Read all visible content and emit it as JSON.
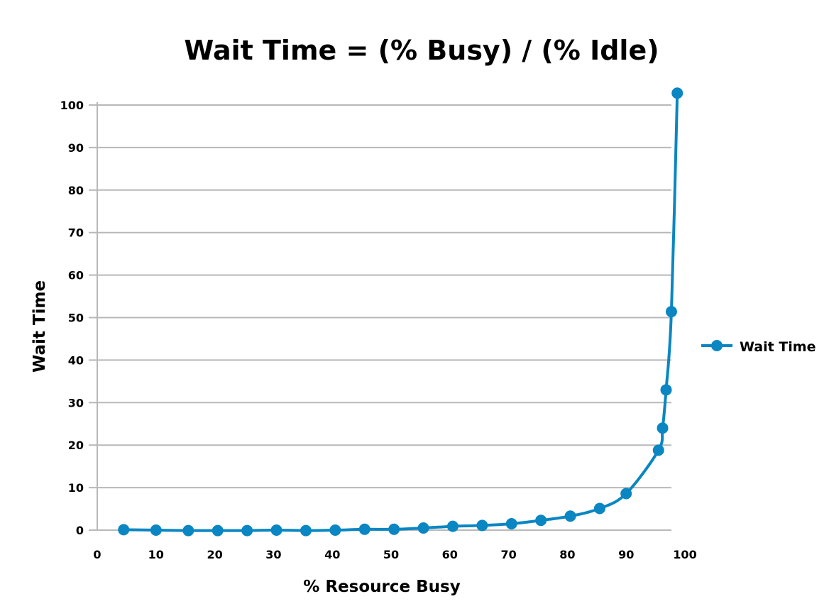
{
  "chart_data": {
    "type": "line",
    "title": "Wait Time = (% Busy) / (% Idle)",
    "xlabel": "% Resource Busy",
    "ylabel": "Wait Time",
    "xlim": [
      0,
      100
    ],
    "ylim": [
      0,
      100
    ],
    "x_ticks": [
      "0",
      "10",
      "20",
      "30",
      "40",
      "50",
      "60",
      "70",
      "80",
      "90",
      "100"
    ],
    "y_ticks": [
      "0",
      "10",
      "20",
      "30",
      "40",
      "50",
      "60",
      "70",
      "80",
      "90",
      "100"
    ],
    "grid": "horizontal",
    "legend_position": "right",
    "series": [
      {
        "name": "Wait Time",
        "color": "#0a86c2",
        "points": [
          {
            "x": 4.5,
            "y": 0.1
          },
          {
            "x": 10,
            "y": 0
          },
          {
            "x": 15.5,
            "y": -0.1
          },
          {
            "x": 20.5,
            "y": -0.1
          },
          {
            "x": 25.5,
            "y": -0.1
          },
          {
            "x": 30.5,
            "y": 0
          },
          {
            "x": 35.5,
            "y": -0.1
          },
          {
            "x": 40.5,
            "y": 0
          },
          {
            "x": 45.5,
            "y": 0.2
          },
          {
            "x": 50.5,
            "y": 0.2
          },
          {
            "x": 55.5,
            "y": 0.5
          },
          {
            "x": 60.5,
            "y": 0.9
          },
          {
            "x": 65.5,
            "y": 1.1
          },
          {
            "x": 70.5,
            "y": 1.5
          },
          {
            "x": 75.5,
            "y": 2.3
          },
          {
            "x": 80.5,
            "y": 3.3
          },
          {
            "x": 85.5,
            "y": 5.1
          },
          {
            "x": 90,
            "y": 8.6
          },
          {
            "x": 95.5,
            "y": 18.8
          },
          {
            "x": 96.2,
            "y": 24
          },
          {
            "x": 96.8,
            "y": 33
          },
          {
            "x": 97.7,
            "y": 51.4
          },
          {
            "x": 98.7,
            "y": 102.8
          }
        ]
      }
    ]
  }
}
